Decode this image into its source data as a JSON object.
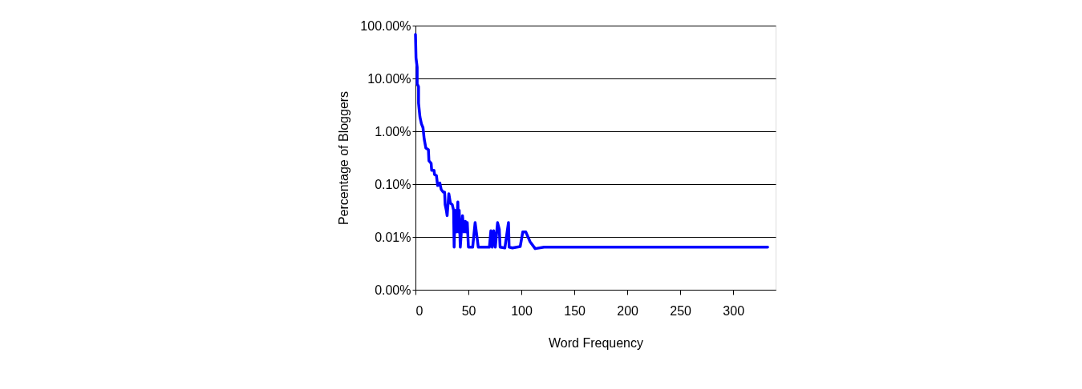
{
  "chart_data": {
    "type": "line",
    "xlabel": "Word Frequency",
    "ylabel": "Percentage of Bloggers",
    "log": "y",
    "grid": "y",
    "marker": "none",
    "line_style": "solid",
    "xlim": [
      0,
      340
    ],
    "xticks": [
      0,
      50,
      100,
      150,
      200,
      250,
      300
    ],
    "ylim": [
      0.001,
      100
    ],
    "yticks": [
      {
        "value": 100,
        "label": "100.00%"
      },
      {
        "value": 10,
        "label": "10.00%"
      },
      {
        "value": 1,
        "label": "1.00%"
      },
      {
        "value": 0.1,
        "label": "0.10%"
      },
      {
        "value": 0.01,
        "label": "0.01%"
      },
      {
        "value": 0.001,
        "label": "0.00%"
      }
    ],
    "series": [
      {
        "color": "#0000ff",
        "x": [
          0,
          0.5,
          1.6,
          1.6,
          2.9,
          2.9,
          4.2,
          5.6,
          7.1,
          8.2,
          9.8,
          12.2,
          12.7,
          14.8,
          15.3,
          17.5,
          18,
          19.8,
          20.9,
          23,
          24.3,
          26.2,
          27.5,
          28,
          29.1,
          29.9,
          31.5,
          33,
          34.7,
          36,
          36.5,
          37.3,
          38.4,
          40,
          40.7,
          41.3,
          42.3,
          44.4,
          45.8,
          47.1,
          47.9,
          48.9,
          50,
          54,
          56.3,
          59.3,
          69.8,
          71.2,
          72.5,
          73.8,
          75.4,
          77.5,
          79.1,
          79.9,
          84.4,
          87.8,
          88.4,
          91.5,
          98.9,
          101.3,
          104.2,
          108.2,
          113,
          121.4,
          332.5
        ],
        "values": [
          68,
          24.6,
          16.2,
          7.9,
          7.0,
          3.4,
          1.88,
          1.39,
          1.17,
          0.72,
          0.48,
          0.45,
          0.277,
          0.246,
          0.182,
          0.182,
          0.152,
          0.144,
          0.094,
          0.105,
          0.079,
          0.0705,
          0.0705,
          0.041,
          0.0321,
          0.0253,
          0.066,
          0.0434,
          0.041,
          0.032,
          0.0064,
          0.032,
          0.0124,
          0.046,
          0.0124,
          0.032,
          0.0064,
          0.0253,
          0.0124,
          0.0198,
          0.0124,
          0.0187,
          0.0064,
          0.0064,
          0.0187,
          0.0064,
          0.0064,
          0.0131,
          0.0064,
          0.0131,
          0.0064,
          0.0187,
          0.014,
          0.0064,
          0.0062,
          0.0187,
          0.0064,
          0.0062,
          0.0066,
          0.0124,
          0.0124,
          0.0081,
          0.006,
          0.0064,
          0.0064
        ]
      }
    ]
  }
}
